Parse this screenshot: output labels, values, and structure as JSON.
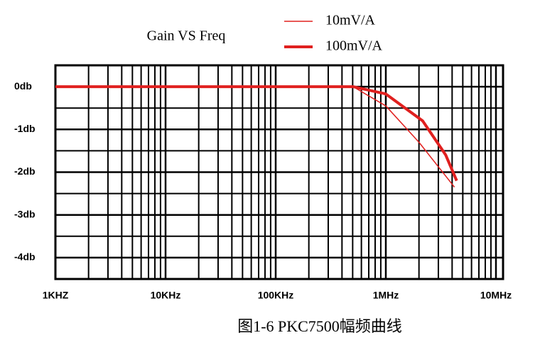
{
  "chart_data": {
    "type": "line",
    "title": "Gain VS Freq",
    "caption": "图1-6 PKC7500幅频曲线",
    "xscale": "log",
    "xlim": [
      1000,
      11600000
    ],
    "xticks": [
      {
        "value": 1000,
        "label": "1KHZ"
      },
      {
        "value": 10000,
        "label": "10KHz"
      },
      {
        "value": 100000,
        "label": "100KHz"
      },
      {
        "value": 1000000,
        "label": "1MHz"
      },
      {
        "value": 10000000,
        "label": "10MHz"
      }
    ],
    "ylim": [
      -4.5,
      0.5
    ],
    "yticks": [
      {
        "value": 0,
        "label": "0db"
      },
      {
        "value": -1,
        "label": "-1db"
      },
      {
        "value": -2,
        "label": "-2db"
      },
      {
        "value": -3,
        "label": "-3db"
      },
      {
        "value": -4,
        "label": "-4db"
      }
    ],
    "yminor": [
      -0.5,
      -1.5,
      -2.5,
      -3.5
    ],
    "grid": true,
    "series": [
      {
        "name": "10mV/A",
        "color": "#e0201f",
        "width": 1.5,
        "x": [
          1000,
          505000,
          1000000,
          2000000,
          4200000
        ],
        "values": [
          0,
          0,
          -0.45,
          -1.3,
          -2.35
        ]
      },
      {
        "name": "100mV/A",
        "color": "#e0201f",
        "width": 4,
        "x": [
          1000,
          505000,
          1000000,
          2160000,
          3500000,
          4400000
        ],
        "values": [
          0,
          0,
          -0.17,
          -0.8,
          -1.6,
          -2.2
        ]
      }
    ]
  }
}
